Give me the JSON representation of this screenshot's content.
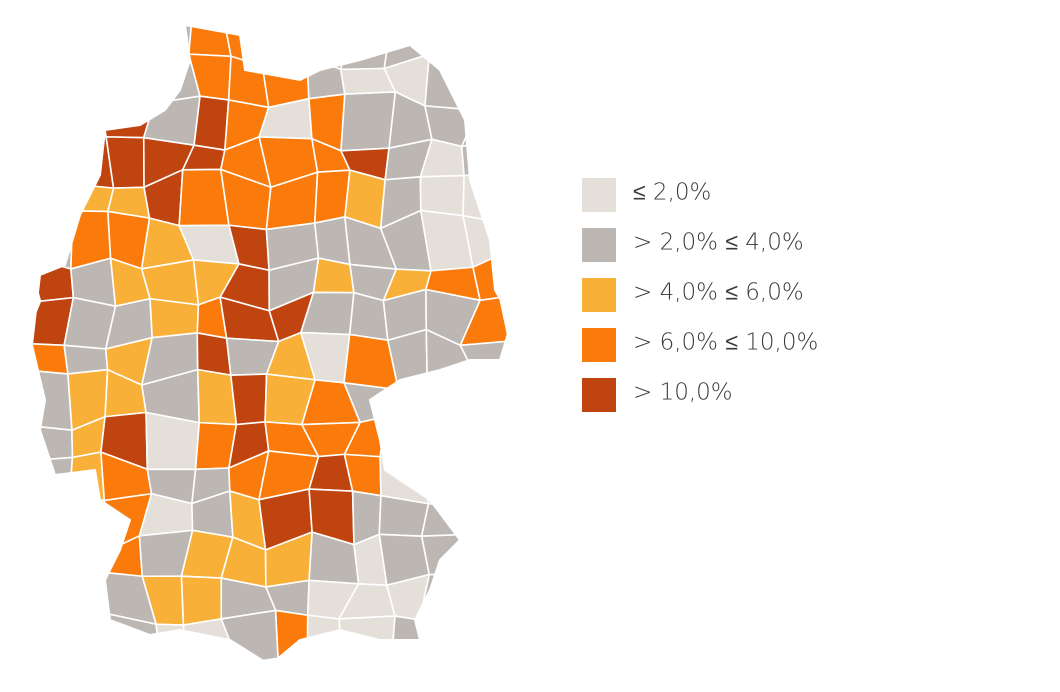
{
  "legend": {
    "items": [
      {
        "label": "≤ 2,0%",
        "color": "#e4dfd8"
      },
      {
        "label": "> 2,0% ≤ 4,0%",
        "color": "#bcb7b3"
      },
      {
        "label": "> 4,0% ≤ 6,0%",
        "color": "#f9b038"
      },
      {
        "label": "> 6,0% ≤ 10,0%",
        "color": "#fa7b0b"
      },
      {
        "label": "> 10,0%",
        "color": "#c0440f"
      }
    ]
  }
}
